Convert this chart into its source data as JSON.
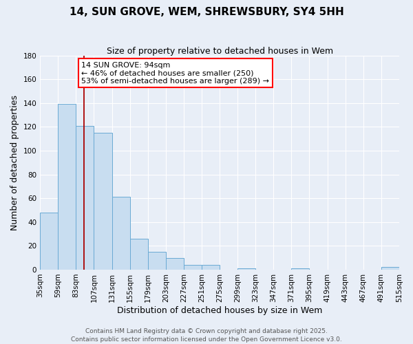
{
  "title": "14, SUN GROVE, WEM, SHREWSBURY, SY4 5HH",
  "subtitle": "Size of property relative to detached houses in Wem",
  "xlabel": "Distribution of detached houses by size in Wem",
  "ylabel": "Number of detached properties",
  "bar_left_edges": [
    35,
    59,
    83,
    107,
    131,
    155,
    179,
    203,
    227,
    251,
    275,
    299,
    323,
    347,
    371,
    395,
    419,
    443,
    467,
    491
  ],
  "bar_heights": [
    48,
    139,
    121,
    115,
    61,
    26,
    15,
    10,
    4,
    4,
    0,
    1,
    0,
    0,
    1,
    0,
    0,
    0,
    0,
    2
  ],
  "bin_width": 24,
  "bar_facecolor": "#c8ddf0",
  "bar_edgecolor": "#6aaad4",
  "ylim": [
    0,
    180
  ],
  "yticks": [
    0,
    20,
    40,
    60,
    80,
    100,
    120,
    140,
    160,
    180
  ],
  "x_tick_labels": [
    "35sqm",
    "59sqm",
    "83sqm",
    "107sqm",
    "131sqm",
    "155sqm",
    "179sqm",
    "203sqm",
    "227sqm",
    "251sqm",
    "275sqm",
    "299sqm",
    "323sqm",
    "347sqm",
    "371sqm",
    "395sqm",
    "419sqm",
    "443sqm",
    "467sqm",
    "491sqm",
    "515sqm"
  ],
  "red_line_x": 94,
  "annotation_title": "14 SUN GROVE: 94sqm",
  "annotation_line1": "← 46% of detached houses are smaller (250)",
  "annotation_line2": "53% of semi-detached houses are larger (289) →",
  "footer_line1": "Contains HM Land Registry data © Crown copyright and database right 2025.",
  "footer_line2": "Contains public sector information licensed under the Open Government Licence v3.0.",
  "background_color": "#e8eef7",
  "grid_color": "#ffffff",
  "title_fontsize": 11,
  "subtitle_fontsize": 9,
  "axis_label_fontsize": 9,
  "tick_fontsize": 7.5,
  "annotation_fontsize": 8,
  "footer_fontsize": 6.5
}
